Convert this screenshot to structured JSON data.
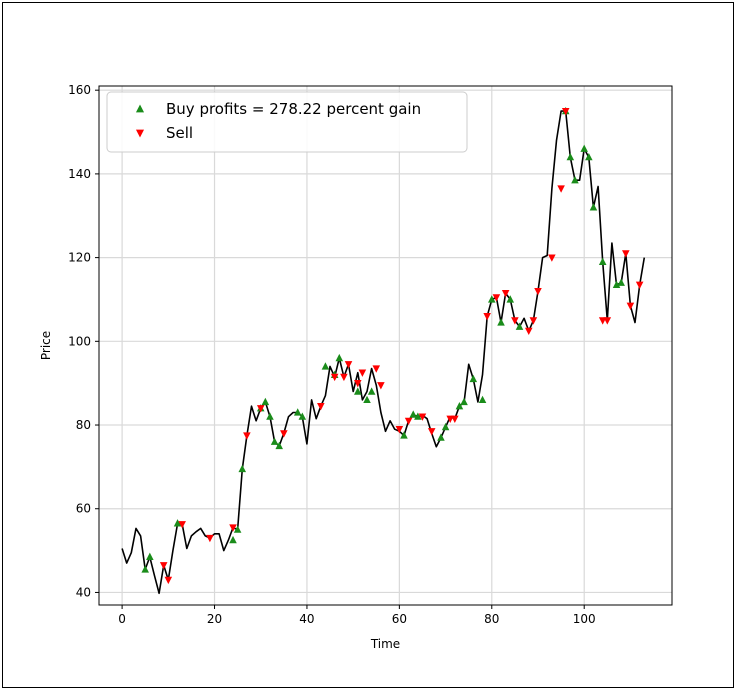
{
  "chart_data": {
    "type": "line",
    "title": "",
    "xlabel": "Time",
    "ylabel": "Price",
    "xlim": [
      -5,
      119
    ],
    "ylim": [
      37,
      161
    ],
    "xticks": [
      0,
      20,
      40,
      60,
      80,
      100
    ],
    "yticks": [
      40,
      60,
      80,
      100,
      120,
      140,
      160
    ],
    "grid": true,
    "legend_position": "top-left",
    "colors": {
      "line": "#000000",
      "buy": "#1a8c1a",
      "sell": "#ff0000"
    },
    "series": [
      {
        "name": "",
        "type": "line",
        "x": [
          0,
          1,
          2,
          3,
          4,
          5,
          6,
          7,
          8,
          9,
          10,
          11,
          12,
          13,
          14,
          15,
          16,
          17,
          18,
          19,
          20,
          21,
          22,
          23,
          24,
          25,
          26,
          27,
          28,
          29,
          30,
          31,
          32,
          33,
          34,
          35,
          36,
          37,
          38,
          39,
          40,
          41,
          42,
          43,
          44,
          45,
          46,
          47,
          48,
          49,
          50,
          51,
          52,
          53,
          54,
          55,
          56,
          57,
          58,
          59,
          60,
          61,
          62,
          63,
          64,
          65,
          66,
          67,
          68,
          69,
          70,
          71,
          72,
          73,
          74,
          75,
          76,
          77,
          78,
          79,
          80,
          81,
          82,
          83,
          84,
          85,
          86,
          87,
          88,
          89,
          90,
          91,
          92,
          93,
          94,
          95,
          96,
          97,
          98,
          99,
          100,
          101,
          102,
          103,
          104,
          105,
          106,
          107,
          108,
          109,
          110,
          111,
          112,
          113
        ],
        "y": [
          50.5,
          47,
          49.5,
          55.3,
          53.5,
          45.5,
          48.5,
          44,
          39.8,
          46.5,
          43,
          50,
          56.5,
          56.3,
          50.5,
          53.5,
          54.5,
          55.3,
          53.5,
          53,
          54,
          54,
          50,
          52.5,
          55.5,
          55,
          69.5,
          77.5,
          84.5,
          81,
          84,
          85.5,
          82,
          76,
          75,
          78,
          82,
          83,
          83,
          82,
          75.5,
          86,
          81.5,
          84.5,
          87,
          94,
          91.5,
          96,
          91.5,
          94.5,
          88,
          92.5,
          86,
          88,
          93.5,
          89.5,
          83,
          78.5,
          81,
          79,
          78.5,
          77.5,
          81,
          82.5,
          82,
          82.3,
          81.5,
          78,
          74.8,
          77,
          79.5,
          82,
          81.5,
          84.5,
          85.5,
          94.5,
          91,
          85.5,
          92,
          106,
          110,
          110.5,
          104.5,
          111.5,
          110,
          105,
          103.5,
          105.5,
          102.5,
          105,
          112,
          120,
          120.5,
          136.5,
          148,
          155,
          155,
          144,
          138.5,
          138.5,
          146,
          144,
          132,
          137,
          119,
          105,
          123.5,
          113.5,
          114,
          121,
          108.5,
          104.5,
          113.5,
          120
        ]
      },
      {
        "name": "Buy profits = 278.22 percent gain",
        "type": "scatter",
        "marker": "triangle-up",
        "x": [
          5,
          6,
          12,
          24,
          25,
          26,
          30,
          31,
          32,
          33,
          34,
          38,
          39,
          44,
          46,
          47,
          51,
          53,
          54,
          61,
          63,
          64,
          69,
          70,
          73,
          74,
          76,
          78,
          80,
          82,
          84,
          86,
          96,
          97,
          98,
          100,
          101,
          102,
          104,
          107,
          108
        ],
        "y": [
          45.5,
          48.5,
          56.5,
          52.5,
          55,
          69.5,
          84,
          85.5,
          82,
          76,
          75,
          83,
          82,
          94,
          92,
          96,
          88,
          86,
          88,
          77.5,
          82.5,
          82,
          77,
          79.5,
          84.5,
          85.5,
          91,
          86,
          110,
          104.5,
          110,
          103.5,
          155,
          144,
          138.5,
          146,
          144,
          132,
          119,
          113.5,
          114
        ]
      },
      {
        "name": "Sell",
        "type": "scatter",
        "marker": "triangle-down",
        "x": [
          9,
          10,
          13,
          19,
          24,
          27,
          30,
          35,
          43,
          46,
          48,
          49,
          51,
          52,
          55,
          56,
          60,
          62,
          65,
          67,
          71,
          72,
          79,
          81,
          83,
          85,
          88,
          89,
          90,
          93,
          95,
          96,
          104,
          105,
          109,
          110,
          112
        ],
        "y": [
          46.5,
          43,
          56.3,
          53,
          55.5,
          77.5,
          84,
          78,
          84.5,
          91.5,
          91.5,
          94.5,
          90,
          92.5,
          93.5,
          89.5,
          79,
          81,
          82,
          78.5,
          81.5,
          81.5,
          106,
          110.5,
          111.5,
          105,
          102.5,
          105,
          112,
          120,
          136.5,
          155,
          105,
          105,
          121,
          108.5,
          113.5
        ]
      }
    ]
  }
}
